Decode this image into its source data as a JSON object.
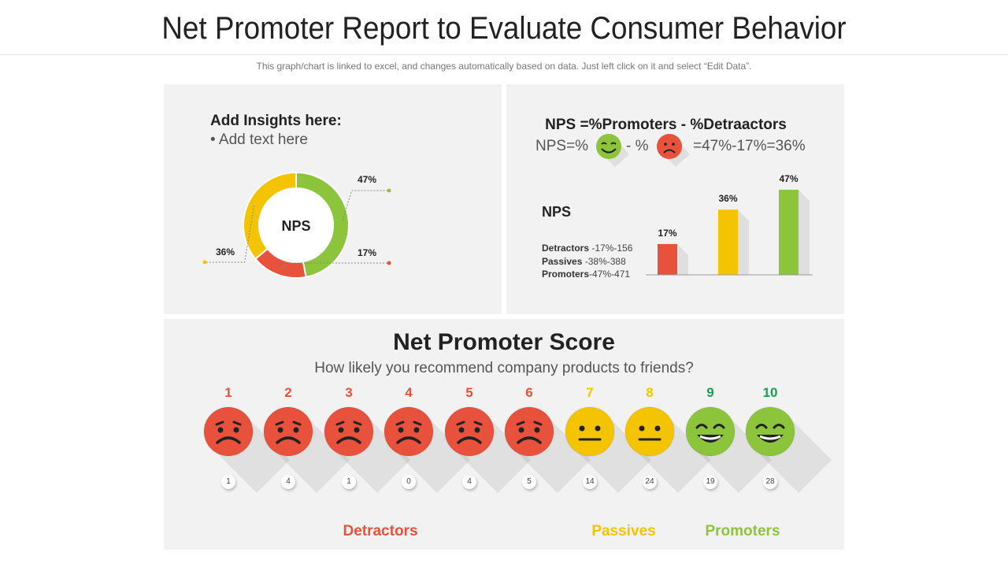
{
  "header": {
    "title": "Net Promoter Report to Evaluate Consumer Behavior",
    "note": "This graph/chart is linked to excel, and changes automatically based on data. Just left click on it and select “Edit Data”."
  },
  "insights": {
    "title": "Add Insights here:",
    "bullet": "Add text here"
  },
  "formula": {
    "title": "NPS =%Promoters - %Detraactors",
    "nps_prefix": "NPS=%",
    "minus": "- %",
    "result": "=47%-17%=36%"
  },
  "nps_panel": {
    "label": "NPS",
    "breakdown": [
      {
        "name": "Detractors",
        "value": " -17%-156"
      },
      {
        "name": "Passives",
        "value": " -38%-388"
      },
      {
        "name": "Promoters",
        "value": "-47%-471"
      }
    ]
  },
  "score": {
    "title": "Net Promoter Score",
    "question": "How likely  you recommend company products to friends?",
    "scale": [
      "1",
      "2",
      "3",
      "4",
      "5",
      "6",
      "7",
      "8",
      "9",
      "10"
    ],
    "counts": [
      "1",
      "4",
      "1",
      "0",
      "4",
      "5",
      "14",
      "24",
      "19",
      "28"
    ],
    "moods": [
      "sad",
      "sad",
      "sad",
      "sad",
      "sad",
      "sad",
      "neutral",
      "neutral",
      "happy",
      "happy"
    ],
    "groups": {
      "detractors": "Detractors",
      "passives": "Passives",
      "promoters": "Promoters"
    }
  },
  "colors": {
    "detractor": "#e8513c",
    "passive": "#f5c400",
    "promoter": "#8cc43c",
    "promoter_number": "#1a9e50"
  },
  "chart_data": [
    {
      "type": "pie",
      "variant": "donut",
      "center_label": "NPS",
      "slices": [
        {
          "label": "47%",
          "value": 47,
          "color": "#8cc43c"
        },
        {
          "label": "17%",
          "value": 17,
          "color": "#e8513c"
        },
        {
          "label": "36%",
          "value": 36,
          "color": "#f5c400"
        }
      ]
    },
    {
      "type": "bar",
      "categories": [
        "Detractors",
        "NPS",
        "Promoters"
      ],
      "values": [
        17,
        36,
        47
      ],
      "labels": [
        "17%",
        "36%",
        "47%"
      ],
      "colors": [
        "#e8513c",
        "#f5c400",
        "#8cc43c"
      ],
      "ylim": [
        0,
        50
      ]
    }
  ]
}
